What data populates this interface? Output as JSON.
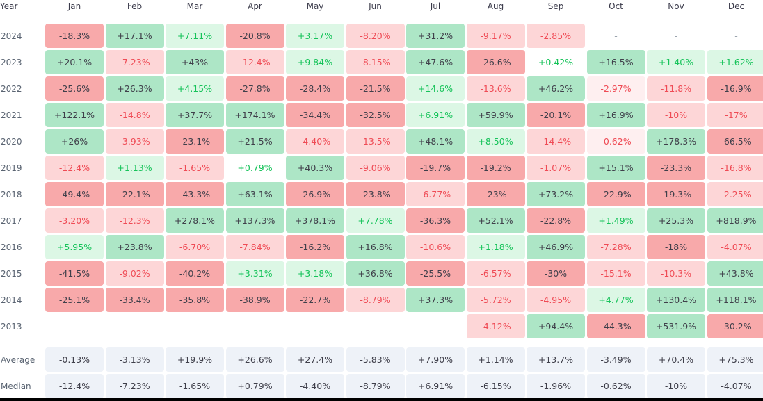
{
  "header": {
    "year_label": "Year",
    "months": [
      "Jan",
      "Feb",
      "Mar",
      "Apr",
      "May",
      "Jun",
      "Jul",
      "Aug",
      "Sep",
      "Oct",
      "Nov",
      "Dec"
    ]
  },
  "rows": [
    {
      "label": "2024",
      "cells": [
        {
          "text": "-18.3%",
          "tone": "red-strong"
        },
        {
          "text": "+17.1%",
          "tone": "green-strong"
        },
        {
          "text": "+7.11%",
          "tone": "green-light"
        },
        {
          "text": "-20.8%",
          "tone": "red-strong"
        },
        {
          "text": "+3.17%",
          "tone": "green-light"
        },
        {
          "text": "-8.20%",
          "tone": "red-light"
        },
        {
          "text": "+31.2%",
          "tone": "green-strong"
        },
        {
          "text": "-9.17%",
          "tone": "red-light"
        },
        {
          "text": "-2.85%",
          "tone": "red-light"
        },
        {
          "text": "-",
          "tone": "empty"
        },
        {
          "text": "-",
          "tone": "empty"
        },
        {
          "text": "-",
          "tone": "empty"
        }
      ]
    },
    {
      "label": "2023",
      "cells": [
        {
          "text": "+20.1%",
          "tone": "green-strong"
        },
        {
          "text": "-7.23%",
          "tone": "red-light"
        },
        {
          "text": "+43%",
          "tone": "green-strong"
        },
        {
          "text": "-12.4%",
          "tone": "red-light"
        },
        {
          "text": "+9.84%",
          "tone": "green-light"
        },
        {
          "text": "-8.15%",
          "tone": "red-light"
        },
        {
          "text": "+47.6%",
          "tone": "green-strong"
        },
        {
          "text": "-26.6%",
          "tone": "red-strong"
        },
        {
          "text": "+0.42%",
          "tone": "green-faint"
        },
        {
          "text": "+16.5%",
          "tone": "green-strong"
        },
        {
          "text": "+1.40%",
          "tone": "green-light"
        },
        {
          "text": "+1.62%",
          "tone": "green-light"
        }
      ]
    },
    {
      "label": "2022",
      "cells": [
        {
          "text": "-25.6%",
          "tone": "red-strong"
        },
        {
          "text": "+26.3%",
          "tone": "green-strong"
        },
        {
          "text": "+4.15%",
          "tone": "green-light"
        },
        {
          "text": "-27.8%",
          "tone": "red-strong"
        },
        {
          "text": "-28.4%",
          "tone": "red-strong"
        },
        {
          "text": "-21.5%",
          "tone": "red-strong"
        },
        {
          "text": "+14.6%",
          "tone": "green-light"
        },
        {
          "text": "-13.6%",
          "tone": "red-light"
        },
        {
          "text": "+46.2%",
          "tone": "green-strong"
        },
        {
          "text": "-2.97%",
          "tone": "red-faint"
        },
        {
          "text": "-11.8%",
          "tone": "red-light"
        },
        {
          "text": "-16.9%",
          "tone": "red-strong"
        }
      ]
    },
    {
      "label": "2021",
      "cells": [
        {
          "text": "+122.1%",
          "tone": "green-strong"
        },
        {
          "text": "-14.8%",
          "tone": "red-light"
        },
        {
          "text": "+37.7%",
          "tone": "green-strong"
        },
        {
          "text": "+174.1%",
          "tone": "green-strong"
        },
        {
          "text": "-34.4%",
          "tone": "red-strong"
        },
        {
          "text": "-32.5%",
          "tone": "red-strong"
        },
        {
          "text": "+6.91%",
          "tone": "green-light"
        },
        {
          "text": "+59.9%",
          "tone": "green-strong"
        },
        {
          "text": "-20.1%",
          "tone": "red-strong"
        },
        {
          "text": "+16.9%",
          "tone": "green-strong"
        },
        {
          "text": "-10%",
          "tone": "red-light"
        },
        {
          "text": "-17%",
          "tone": "red-light"
        }
      ]
    },
    {
      "label": "2020",
      "cells": [
        {
          "text": "+26%",
          "tone": "green-strong"
        },
        {
          "text": "-3.93%",
          "tone": "red-light"
        },
        {
          "text": "-23.1%",
          "tone": "red-strong"
        },
        {
          "text": "+21.5%",
          "tone": "green-strong"
        },
        {
          "text": "-4.40%",
          "tone": "red-light"
        },
        {
          "text": "-13.5%",
          "tone": "red-light"
        },
        {
          "text": "+48.1%",
          "tone": "green-strong"
        },
        {
          "text": "+8.50%",
          "tone": "green-light"
        },
        {
          "text": "-14.4%",
          "tone": "red-light"
        },
        {
          "text": "-0.62%",
          "tone": "red-faint"
        },
        {
          "text": "+178.3%",
          "tone": "green-strong"
        },
        {
          "text": "-66.5%",
          "tone": "red-strong"
        }
      ]
    },
    {
      "label": "2019",
      "cells": [
        {
          "text": "-12.4%",
          "tone": "red-light"
        },
        {
          "text": "+1.13%",
          "tone": "green-light"
        },
        {
          "text": "-1.65%",
          "tone": "red-light"
        },
        {
          "text": "+0.79%",
          "tone": "green-faint"
        },
        {
          "text": "+40.3%",
          "tone": "green-strong"
        },
        {
          "text": "-9.06%",
          "tone": "red-light"
        },
        {
          "text": "-19.7%",
          "tone": "red-strong"
        },
        {
          "text": "-19.2%",
          "tone": "red-strong"
        },
        {
          "text": "-1.07%",
          "tone": "red-light"
        },
        {
          "text": "+15.1%",
          "tone": "green-strong"
        },
        {
          "text": "-23.3%",
          "tone": "red-strong"
        },
        {
          "text": "-16.8%",
          "tone": "red-light"
        }
      ]
    },
    {
      "label": "2018",
      "cells": [
        {
          "text": "-49.4%",
          "tone": "red-strong"
        },
        {
          "text": "-22.1%",
          "tone": "red-strong"
        },
        {
          "text": "-43.3%",
          "tone": "red-strong"
        },
        {
          "text": "+63.1%",
          "tone": "green-strong"
        },
        {
          "text": "-26.9%",
          "tone": "red-strong"
        },
        {
          "text": "-23.8%",
          "tone": "red-strong"
        },
        {
          "text": "-6.77%",
          "tone": "red-light"
        },
        {
          "text": "-23%",
          "tone": "red-strong"
        },
        {
          "text": "+73.2%",
          "tone": "green-strong"
        },
        {
          "text": "-22.9%",
          "tone": "red-strong"
        },
        {
          "text": "-19.3%",
          "tone": "red-strong"
        },
        {
          "text": "-2.25%",
          "tone": "red-light"
        }
      ]
    },
    {
      "label": "2017",
      "cells": [
        {
          "text": "-3.20%",
          "tone": "red-light"
        },
        {
          "text": "-12.3%",
          "tone": "red-light"
        },
        {
          "text": "+278.1%",
          "tone": "green-strong"
        },
        {
          "text": "+137.3%",
          "tone": "green-strong"
        },
        {
          "text": "+378.1%",
          "tone": "green-strong"
        },
        {
          "text": "+7.78%",
          "tone": "green-light"
        },
        {
          "text": "-36.3%",
          "tone": "red-strong"
        },
        {
          "text": "+52.1%",
          "tone": "green-strong"
        },
        {
          "text": "-22.8%",
          "tone": "red-strong"
        },
        {
          "text": "+1.49%",
          "tone": "green-light"
        },
        {
          "text": "+25.3%",
          "tone": "green-strong"
        },
        {
          "text": "+818.9%",
          "tone": "green-strong"
        }
      ]
    },
    {
      "label": "2016",
      "cells": [
        {
          "text": "+5.95%",
          "tone": "green-light"
        },
        {
          "text": "+23.8%",
          "tone": "green-strong"
        },
        {
          "text": "-6.70%",
          "tone": "red-light"
        },
        {
          "text": "-7.84%",
          "tone": "red-light"
        },
        {
          "text": "-16.2%",
          "tone": "red-strong"
        },
        {
          "text": "+16.8%",
          "tone": "green-strong"
        },
        {
          "text": "-10.6%",
          "tone": "red-light"
        },
        {
          "text": "+1.18%",
          "tone": "green-light"
        },
        {
          "text": "+46.9%",
          "tone": "green-strong"
        },
        {
          "text": "-7.28%",
          "tone": "red-light"
        },
        {
          "text": "-18%",
          "tone": "red-strong"
        },
        {
          "text": "-4.07%",
          "tone": "red-light"
        }
      ]
    },
    {
      "label": "2015",
      "cells": [
        {
          "text": "-41.5%",
          "tone": "red-strong"
        },
        {
          "text": "-9.02%",
          "tone": "red-light"
        },
        {
          "text": "-40.2%",
          "tone": "red-strong"
        },
        {
          "text": "+3.31%",
          "tone": "green-light"
        },
        {
          "text": "+3.18%",
          "tone": "green-light"
        },
        {
          "text": "+36.8%",
          "tone": "green-strong"
        },
        {
          "text": "-25.5%",
          "tone": "red-strong"
        },
        {
          "text": "-6.57%",
          "tone": "red-light"
        },
        {
          "text": "-30%",
          "tone": "red-strong"
        },
        {
          "text": "-15.1%",
          "tone": "red-light"
        },
        {
          "text": "-10.3%",
          "tone": "red-light"
        },
        {
          "text": "+43.8%",
          "tone": "green-strong"
        }
      ]
    },
    {
      "label": "2014",
      "cells": [
        {
          "text": "-25.1%",
          "tone": "red-strong"
        },
        {
          "text": "-33.4%",
          "tone": "red-strong"
        },
        {
          "text": "-35.8%",
          "tone": "red-strong"
        },
        {
          "text": "-38.9%",
          "tone": "red-strong"
        },
        {
          "text": "-22.7%",
          "tone": "red-strong"
        },
        {
          "text": "-8.79%",
          "tone": "red-light"
        },
        {
          "text": "+37.3%",
          "tone": "green-strong"
        },
        {
          "text": "-5.72%",
          "tone": "red-light"
        },
        {
          "text": "-4.95%",
          "tone": "red-light"
        },
        {
          "text": "+4.77%",
          "tone": "green-light"
        },
        {
          "text": "+130.4%",
          "tone": "green-strong"
        },
        {
          "text": "+118.1%",
          "tone": "green-strong"
        }
      ]
    },
    {
      "label": "2013",
      "cells": [
        {
          "text": "-",
          "tone": "empty"
        },
        {
          "text": "-",
          "tone": "empty"
        },
        {
          "text": "-",
          "tone": "empty"
        },
        {
          "text": "-",
          "tone": "empty"
        },
        {
          "text": "-",
          "tone": "empty"
        },
        {
          "text": "-",
          "tone": "empty"
        },
        {
          "text": "-",
          "tone": "empty"
        },
        {
          "text": "-4.12%",
          "tone": "red-light"
        },
        {
          "text": "+94.4%",
          "tone": "green-strong"
        },
        {
          "text": "-44.3%",
          "tone": "red-strong"
        },
        {
          "text": "+531.9%",
          "tone": "green-strong"
        },
        {
          "text": "-30.2%",
          "tone": "red-strong"
        }
      ]
    }
  ],
  "summary": [
    {
      "label": "Average",
      "cells": [
        "-0.13%",
        "-3.13%",
        "+19.9%",
        "+26.6%",
        "+27.4%",
        "-5.83%",
        "+7.90%",
        "+1.14%",
        "+13.7%",
        "-3.49%",
        "+70.4%",
        "+75.3%"
      ]
    },
    {
      "label": "Median",
      "cells": [
        "-12.4%",
        "-7.23%",
        "-1.65%",
        "+0.79%",
        "-4.40%",
        "-8.79%",
        "+6.91%",
        "-6.15%",
        "-1.96%",
        "-0.62%",
        "-10%",
        "-4.07%"
      ]
    }
  ],
  "colors": {
    "red-strong": {
      "bg": "#f8a9aa",
      "fg": "#3f3f4a"
    },
    "red-light": {
      "bg": "#fdd6d7",
      "fg": "#ef4b55"
    },
    "red-faint": {
      "bg": "#feeff0",
      "fg": "#ef4b55"
    },
    "green-strong": {
      "bg": "#ade6c6",
      "fg": "#3f3f4a"
    },
    "green-light": {
      "bg": "#dcf7e5",
      "fg": "#16c35a"
    },
    "green-faint": {
      "bg": "#ffffff",
      "fg": "#16c35a"
    },
    "empty": {
      "bg": "transparent",
      "fg": "#9aa3ad"
    },
    "summary": {
      "bg": "#eef2f8",
      "fg": "#3f3f4a"
    }
  }
}
